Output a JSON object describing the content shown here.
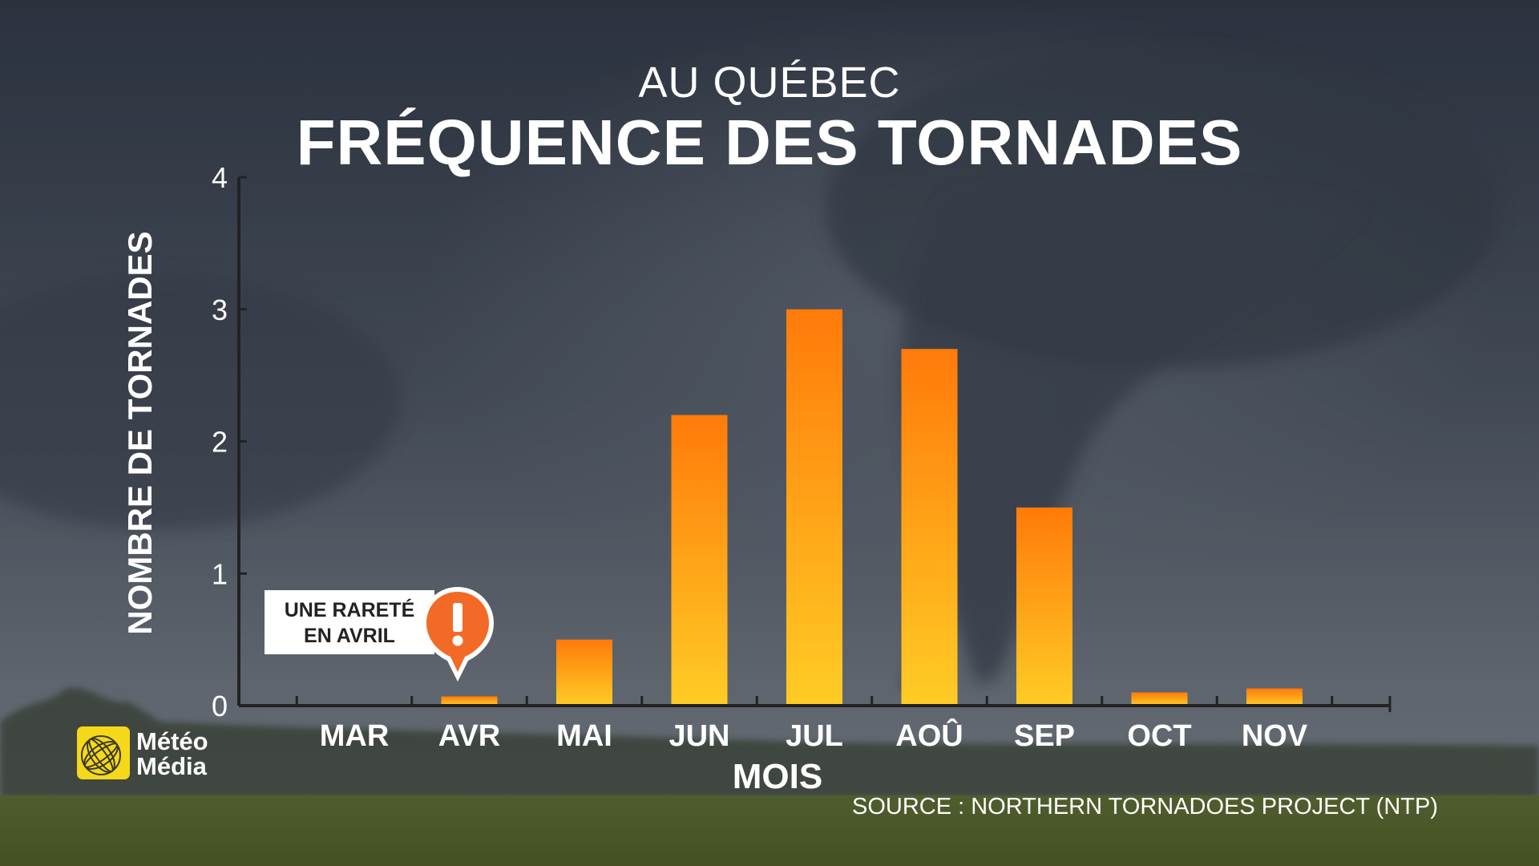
{
  "header": {
    "subtitle": "AU QUÉBEC",
    "title": "FRÉQUENCE DES TORNADES"
  },
  "chart_data": {
    "type": "bar",
    "subtitle": "AU QUÉBEC",
    "title": "FRÉQUENCE DES TORNADES",
    "xlabel": "MOIS",
    "ylabel": "NOMBRE DE TORNADES",
    "categories": [
      "MAR",
      "AVR",
      "MAI",
      "JUN",
      "JUL",
      "AOÛ",
      "SEP",
      "OCT",
      "NOV"
    ],
    "values": [
      0,
      0.07,
      0.5,
      2.2,
      3.0,
      2.7,
      1.5,
      0.1,
      0.13
    ],
    "yticks": [
      0,
      1,
      2,
      3,
      4
    ],
    "ylim": [
      0,
      4
    ],
    "grid": false,
    "colors": {
      "bar_top": "#ff7a0a",
      "bar_bottom": "#ffcc25",
      "axis": "#222222",
      "text": "#ffffff"
    }
  },
  "callout": {
    "line1": "UNE RARETÉ",
    "line2": "EN AVRIL",
    "icon": "exclamation-icon",
    "color": "#f26a25"
  },
  "source": "SOURCE : NORTHERN TORNADOES PROJECT (NTP)",
  "logo": {
    "line1": "Météo",
    "line2": "Média",
    "color": "#f5d81a"
  }
}
